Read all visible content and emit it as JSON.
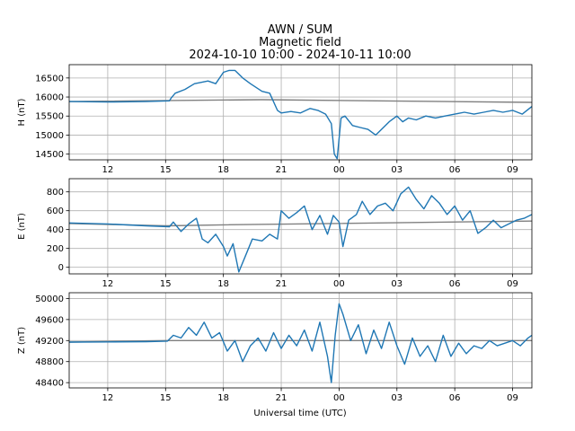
{
  "chart_data": {
    "type": "line",
    "title_lines": [
      "AWN / SUM",
      "Magnetic field",
      "2024-10-10 10:00 - 2024-10-11 10:00"
    ],
    "xlabel": "Universal time (UTC)",
    "x_tick_labels": [
      "12",
      "15",
      "18",
      "21",
      "00",
      "03",
      "06",
      "09"
    ],
    "x_tick_hours": [
      2,
      5,
      8,
      11,
      14,
      17,
      20,
      23
    ],
    "x_range_hours": [
      0,
      24
    ],
    "grid": true,
    "colors": {
      "data": "#1f77b4",
      "baseline": "#808080"
    },
    "panels": [
      {
        "ylabel": "H (nT)",
        "ylim": [
          14350,
          16850
        ],
        "y_ticks": [
          14500,
          15000,
          15500,
          16000,
          16500
        ],
        "y_tick_labels": [
          "14500",
          "15000",
          "15500",
          "16000",
          "16500"
        ],
        "baseline": {
          "x": [
            0,
            10,
            24
          ],
          "y": [
            15880,
            15930,
            15860
          ]
        },
        "series": {
          "x": [
            0,
            2,
            4,
            5.2,
            5.3,
            5.5,
            6,
            6.5,
            6.8,
            7.2,
            7.6,
            8,
            8.3,
            8.6,
            9,
            9.4,
            10,
            10.4,
            10.8,
            11,
            11.5,
            12,
            12.5,
            12.9,
            13.3,
            13.6,
            13.75,
            13.9,
            14.1,
            14.3,
            14.7,
            15.1,
            15.5,
            15.9,
            16.2,
            16.6,
            17,
            17.3,
            17.6,
            18,
            18.5,
            19,
            19.5,
            20,
            20.5,
            21,
            21.5,
            22,
            22.5,
            23,
            23.5,
            24
          ],
          "y": [
            15880,
            15870,
            15880,
            15900,
            15980,
            16100,
            16200,
            16350,
            16380,
            16420,
            16350,
            16650,
            16700,
            16700,
            16500,
            16350,
            16150,
            16100,
            15650,
            15580,
            15620,
            15580,
            15700,
            15650,
            15550,
            15300,
            14500,
            14380,
            15450,
            15500,
            15250,
            15200,
            15150,
            15000,
            15150,
            15350,
            15500,
            15350,
            15450,
            15400,
            15500,
            15450,
            15500,
            15550,
            15600,
            15550,
            15600,
            15650,
            15600,
            15650,
            15550,
            15750
          ]
        }
      },
      {
        "ylabel": "E (nT)",
        "ylim": [
          -70,
          940
        ],
        "y_ticks": [
          0,
          200,
          400,
          600,
          800
        ],
        "y_tick_labels": [
          "0",
          "200",
          "400",
          "600",
          "800"
        ],
        "baseline": {
          "x": [
            0,
            5,
            8,
            24
          ],
          "y": [
            465,
            440,
            450,
            490
          ]
        },
        "series": {
          "x": [
            0,
            2,
            4,
            5.2,
            5.4,
            5.8,
            6.2,
            6.6,
            6.9,
            7.2,
            7.6,
            8,
            8.2,
            8.5,
            8.8,
            9.1,
            9.5,
            10,
            10.4,
            10.8,
            11,
            11.4,
            11.8,
            12.2,
            12.6,
            13,
            13.4,
            13.7,
            14,
            14.2,
            14.5,
            14.9,
            15.2,
            15.6,
            16,
            16.4,
            16.8,
            17.2,
            17.6,
            18,
            18.4,
            18.8,
            19.2,
            19.6,
            20,
            20.4,
            20.8,
            21.2,
            21.6,
            22,
            22.4,
            22.8,
            23.2,
            23.6,
            24
          ],
          "y": [
            470,
            460,
            440,
            430,
            480,
            380,
            460,
            520,
            300,
            260,
            350,
            220,
            120,
            250,
            -50,
            100,
            300,
            280,
            350,
            300,
            600,
            520,
            580,
            650,
            400,
            550,
            350,
            550,
            480,
            220,
            500,
            560,
            700,
            560,
            650,
            680,
            600,
            780,
            850,
            720,
            620,
            760,
            680,
            560,
            650,
            500,
            600,
            360,
            420,
            500,
            420,
            460,
            500,
            520,
            560
          ]
        }
      },
      {
        "ylabel": "Z (nT)",
        "ylim": [
          48300,
          50110
        ],
        "y_ticks": [
          48400,
          48800,
          49200,
          49600,
          50000
        ],
        "y_tick_labels": [
          "48400",
          "48800",
          "49200",
          "49600",
          "50000"
        ],
        "baseline": {
          "x": [
            0,
            5,
            24
          ],
          "y": [
            49170,
            49200,
            49200
          ]
        },
        "series": {
          "x": [
            0,
            2,
            4,
            5.1,
            5.4,
            5.8,
            6.2,
            6.6,
            7,
            7.4,
            7.8,
            8.2,
            8.6,
            9,
            9.4,
            9.8,
            10.2,
            10.6,
            11,
            11.4,
            11.8,
            12.2,
            12.6,
            13,
            13.4,
            13.6,
            13.8,
            14,
            14.2,
            14.6,
            15,
            15.4,
            15.8,
            16.2,
            16.6,
            17,
            17.4,
            17.8,
            18.2,
            18.6,
            19,
            19.4,
            19.8,
            20.2,
            20.6,
            21,
            21.4,
            21.8,
            22.2,
            22.6,
            23,
            23.4,
            23.8,
            24
          ],
          "y": [
            49170,
            49175,
            49180,
            49190,
            49300,
            49250,
            49450,
            49300,
            49550,
            49250,
            49350,
            49000,
            49200,
            48800,
            49100,
            49250,
            49000,
            49350,
            49050,
            49300,
            49100,
            49400,
            49000,
            49550,
            48900,
            48400,
            49300,
            49900,
            49700,
            49200,
            49500,
            48950,
            49400,
            49050,
            49550,
            49100,
            48750,
            49250,
            48900,
            49100,
            48800,
            49300,
            48900,
            49150,
            48950,
            49100,
            49050,
            49200,
            49100,
            49150,
            49200,
            49100,
            49250,
            49300
          ]
        }
      }
    ]
  }
}
